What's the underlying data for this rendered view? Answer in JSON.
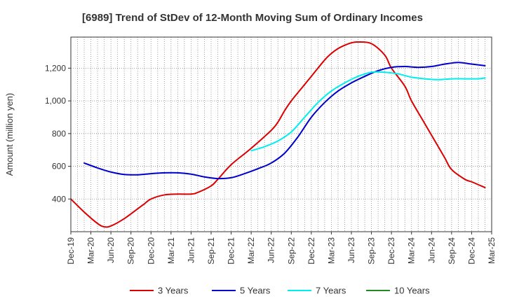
{
  "chart_data": {
    "type": "line",
    "title": "[6989]  Trend of StDev of 12-Month Moving Sum of Ordinary Incomes",
    "xlabel": "",
    "ylabel": "Amount (million yen)",
    "ylim": [
      200,
      1390
    ],
    "yticks": [
      400,
      600,
      800,
      1000,
      1200
    ],
    "ytick_labels": [
      "400",
      "600",
      "800",
      "1,000",
      "1,200"
    ],
    "x_tick_labels": [
      "Dec-19",
      "Mar-20",
      "Jun-20",
      "Sep-20",
      "Dec-20",
      "Mar-21",
      "Jun-21",
      "Sep-21",
      "Dec-21",
      "Mar-22",
      "Jun-22",
      "Sep-22",
      "Dec-22",
      "Mar-23",
      "Jun-23",
      "Sep-23",
      "Dec-23",
      "Mar-24",
      "Jun-24",
      "Sep-24",
      "Dec-24",
      "Mar-25"
    ],
    "x_range": [
      0,
      63
    ],
    "series": [
      {
        "name": "3 Years",
        "color": "#dd0000",
        "x": [
          0,
          2,
          4,
          5,
          6,
          8,
          10,
          11,
          12,
          14,
          16,
          18,
          19,
          21,
          22,
          24,
          27,
          30,
          31,
          32,
          33,
          35,
          36,
          38,
          39,
          40,
          41,
          42,
          43,
          45,
          47,
          48,
          50,
          51,
          53,
          55,
          56,
          57,
          59,
          60,
          62
        ],
        "values": [
          400,
          320,
          250,
          230,
          235,
          280,
          340,
          370,
          400,
          425,
          430,
          430,
          440,
          480,
          520,
          610,
          710,
          820,
          870,
          940,
          1000,
          1100,
          1150,
          1250,
          1290,
          1320,
          1340,
          1355,
          1360,
          1350,
          1280,
          1200,
          1090,
          1000,
          860,
          720,
          650,
          580,
          520,
          505,
          470
        ]
      },
      {
        "name": "5 Years",
        "color": "#0000cc",
        "x": [
          2,
          4,
          6,
          8,
          10,
          12,
          14,
          16,
          18,
          20,
          22,
          24,
          26,
          28,
          30,
          32,
          34,
          36,
          38,
          40,
          42,
          44,
          46,
          48,
          50,
          52,
          54,
          56,
          58,
          60,
          62
        ],
        "values": [
          620,
          590,
          565,
          550,
          548,
          555,
          560,
          560,
          552,
          535,
          525,
          530,
          555,
          585,
          620,
          680,
          780,
          900,
          990,
          1060,
          1110,
          1150,
          1185,
          1205,
          1210,
          1205,
          1210,
          1225,
          1235,
          1225,
          1215
        ]
      },
      {
        "name": "7 Years",
        "color": "#00eeee",
        "x": [
          27,
          29,
          31,
          33,
          35,
          37,
          39,
          41,
          43,
          45,
          47,
          49,
          51,
          53,
          55,
          57,
          59,
          61,
          62
        ],
        "values": [
          695,
          720,
          755,
          810,
          900,
          990,
          1060,
          1110,
          1150,
          1175,
          1175,
          1165,
          1145,
          1135,
          1130,
          1135,
          1135,
          1135,
          1140
        ]
      },
      {
        "name": "10 Years",
        "color": "#228b22",
        "x": [],
        "values": []
      }
    ]
  }
}
